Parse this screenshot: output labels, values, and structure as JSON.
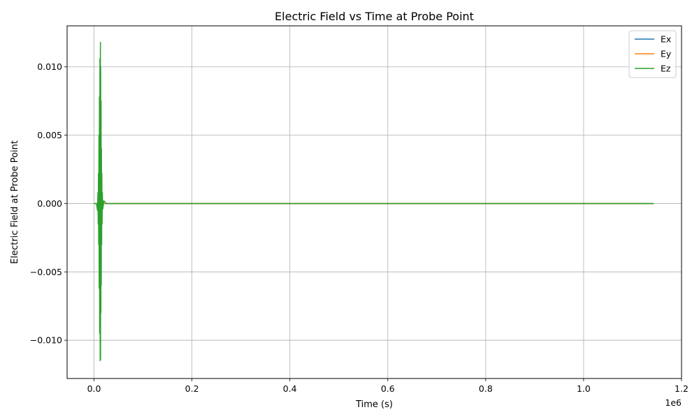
{
  "chart_data": {
    "type": "line",
    "title": "Electric Field vs Time at Probe Point",
    "xlabel": "Time (s)",
    "ylabel": "Electric Field at Probe Point",
    "x_offset_label": "1e6",
    "xlim": [
      -55000,
      1200000
    ],
    "ylim": [
      -0.0128,
      0.013
    ],
    "grid": true,
    "legend_position": "top-right",
    "x_ticks": [
      0,
      200000,
      400000,
      600000,
      800000,
      1000000,
      1200000
    ],
    "x_tick_labels": [
      "0.0",
      "0.2",
      "0.4",
      "0.6",
      "0.8",
      "1.0",
      "1.2"
    ],
    "y_ticks": [
      -0.01,
      -0.005,
      0.0,
      0.005,
      0.01
    ],
    "y_tick_labels": [
      "−0.010",
      "−0.005",
      "0.000",
      "0.005",
      "0.010"
    ],
    "series": [
      {
        "name": "Ex",
        "color": "#1f77b4",
        "x": [
          0,
          1143000
        ],
        "y": [
          0,
          0
        ]
      },
      {
        "name": "Ey",
        "color": "#ff7f0e",
        "x": [
          0,
          1143000
        ],
        "y": [
          0,
          0
        ]
      },
      {
        "name": "Ez",
        "color": "#2ca02c",
        "x": [
          0,
          5000,
          7000,
          8000,
          8500,
          9000,
          9500,
          10000,
          10500,
          11000,
          11500,
          12000,
          12500,
          13000,
          13300,
          13600,
          14000,
          14400,
          14800,
          15200,
          15600,
          16000,
          16500,
          17000,
          18000,
          20000,
          25000,
          40000,
          1143000
        ],
        "y": [
          0,
          0,
          -0.0005,
          0.0008,
          -0.0015,
          0.0022,
          -0.003,
          0.005,
          -0.0062,
          0.0078,
          -0.0095,
          0.0106,
          -0.0115,
          0.0118,
          -0.0114,
          0.01,
          -0.008,
          0.0075,
          -0.006,
          0.004,
          -0.003,
          0.0022,
          -0.0015,
          0.0008,
          -0.0004,
          0.0002,
          0,
          0,
          0
        ]
      }
    ]
  }
}
